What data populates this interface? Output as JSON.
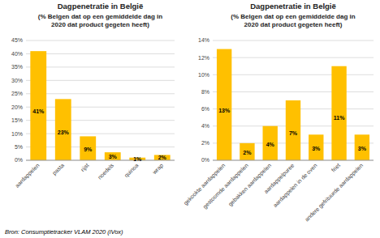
{
  "chart_data": [
    {
      "type": "bar",
      "title": "Dagpenetratie in België",
      "subtitle": "(% Belgen dat op een gemiddelde dag in\n2020 dat product gegeten heeft)",
      "categories": [
        "aardappelen",
        "pasta",
        "rijst",
        "noedels",
        "quinoa",
        "wrap"
      ],
      "values": [
        41,
        23,
        9,
        3,
        1,
        2
      ],
      "value_labels": [
        "41%",
        "23%",
        "9%",
        "3%",
        "1%",
        "2%"
      ],
      "color": "#FFC000",
      "ylim": [
        0,
        45
      ],
      "yticks": [
        {
          "value": 0,
          "label": "0%"
        },
        {
          "value": 5,
          "label": "5%"
        },
        {
          "value": 10,
          "label": "10%"
        },
        {
          "value": 15,
          "label": "15%"
        },
        {
          "value": 20,
          "label": "20%"
        },
        {
          "value": 25,
          "label": "25%"
        },
        {
          "value": 30,
          "label": "30%"
        },
        {
          "value": 35,
          "label": "35%"
        },
        {
          "value": 40,
          "label": "40%"
        },
        {
          "value": 45,
          "label": "45%"
        }
      ],
      "grid": true
    },
    {
      "type": "bar",
      "title": "Dagpenetratie in België",
      "subtitle": "(% Belgen dat op een gemiddelde dag in\n2020 dat product gegeten heeft)",
      "categories": [
        "gekookte aardappelen",
        "gestoomde aardappelen",
        "gebakken aardappelen",
        "aardappelpuree",
        "aardappelen in de oven",
        "friet",
        "andere gefrituurde aardappelen"
      ],
      "values": [
        13,
        2,
        4,
        7,
        3,
        11,
        3
      ],
      "value_labels": [
        "13%",
        "2%",
        "4%",
        "7%",
        "3%",
        "11%",
        "3%"
      ],
      "color": "#FFC000",
      "ylim": [
        0,
        14
      ],
      "yticks": [
        {
          "value": 0,
          "label": "0%"
        },
        {
          "value": 2,
          "label": "2%"
        },
        {
          "value": 4,
          "label": "4%"
        },
        {
          "value": 6,
          "label": "6%"
        },
        {
          "value": 8,
          "label": "8%"
        },
        {
          "value": 10,
          "label": "10%"
        },
        {
          "value": 12,
          "label": "12%"
        },
        {
          "value": 14,
          "label": "14%"
        }
      ],
      "grid": true
    }
  ],
  "source": "Bron: Consumptietracker VLAM 2020 (iVox)"
}
